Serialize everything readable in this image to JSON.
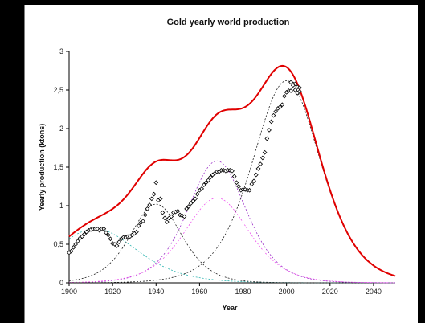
{
  "chart_data": {
    "type": "scatter",
    "title": "Gold yearly world production",
    "xlabel": "Year",
    "ylabel": "Yearly production (ktons)",
    "xlim": [
      1900,
      2050
    ],
    "ylim": [
      0,
      3
    ],
    "x_ticks": [
      "1900",
      "1920",
      "1940",
      "1960",
      "1980",
      "2000",
      "2020",
      "2040"
    ],
    "y_ticks": [
      "0",
      "0,5",
      "1",
      "1,5",
      "2",
      "2,5",
      "3"
    ],
    "grid": false,
    "legend": "none",
    "observed": {
      "marker": "diamond",
      "color": "#000000",
      "x": [
        1900,
        1901,
        1902,
        1903,
        1904,
        1905,
        1906,
        1907,
        1908,
        1909,
        1910,
        1911,
        1912,
        1913,
        1914,
        1915,
        1916,
        1917,
        1918,
        1919,
        1920,
        1921,
        1922,
        1923,
        1924,
        1925,
        1926,
        1927,
        1928,
        1929,
        1930,
        1931,
        1932,
        1933,
        1934,
        1935,
        1936,
        1937,
        1938,
        1939,
        1940,
        1941,
        1942,
        1943,
        1944,
        1945,
        1946,
        1947,
        1948,
        1949,
        1950,
        1951,
        1952,
        1953,
        1954,
        1955,
        1956,
        1957,
        1958,
        1959,
        1960,
        1961,
        1962,
        1963,
        1964,
        1965,
        1966,
        1967,
        1968,
        1969,
        1970,
        1971,
        1972,
        1973,
        1974,
        1975,
        1976,
        1977,
        1978,
        1979,
        1980,
        1981,
        1982,
        1983,
        1984,
        1985,
        1986,
        1987,
        1988,
        1989,
        1990,
        1991,
        1992,
        1993,
        1994,
        1995,
        1996,
        1997,
        1998,
        1999,
        2000,
        2001,
        2002,
        2003,
        2004,
        2005,
        2006
      ],
      "y": [
        0.39,
        0.41,
        0.46,
        0.5,
        0.54,
        0.58,
        0.6,
        0.63,
        0.66,
        0.68,
        0.69,
        0.7,
        0.7,
        0.7,
        0.68,
        0.7,
        0.7,
        0.65,
        0.62,
        0.57,
        0.51,
        0.5,
        0.48,
        0.53,
        0.57,
        0.59,
        0.59,
        0.6,
        0.6,
        0.62,
        0.64,
        0.66,
        0.74,
        0.78,
        0.8,
        0.88,
        0.96,
        1.01,
        1.09,
        1.15,
        1.3,
        1.07,
        1.09,
        0.91,
        0.84,
        0.79,
        0.84,
        0.86,
        0.91,
        0.92,
        0.93,
        0.88,
        0.87,
        0.86,
        0.96,
        0.99,
        1.03,
        1.06,
        1.09,
        1.15,
        1.2,
        1.22,
        1.27,
        1.3,
        1.33,
        1.37,
        1.4,
        1.42,
        1.44,
        1.44,
        1.46,
        1.46,
        1.45,
        1.46,
        1.46,
        1.45,
        1.38,
        1.3,
        1.25,
        1.2,
        1.21,
        1.21,
        1.2,
        1.2,
        1.28,
        1.32,
        1.4,
        1.48,
        1.54,
        1.62,
        1.69,
        1.87,
        1.98,
        2.09,
        2.17,
        2.22,
        2.26,
        2.28,
        2.31,
        2.42,
        2.47,
        2.49,
        2.49,
        2.58,
        2.58,
        2.54,
        2.53
      ],
      "extra_x": [
        2002,
        2003,
        2004,
        2005,
        2006
      ],
      "extra_y": [
        2.6,
        2.56,
        2.5,
        2.46,
        2.48
      ]
    },
    "fit_components": [
      {
        "color": "#2fb5b0",
        "peak_year": 1912,
        "peak": 0.7,
        "width": 13.0
      },
      {
        "color": "#222222",
        "peak_year": 1940,
        "peak": 1.02,
        "width": 8.0
      },
      {
        "color": "#9b30c8",
        "peak_year": 1968,
        "peak": 1.58,
        "width": 9.0
      },
      {
        "color": "#ee55ee",
        "peak_year": 1968,
        "peak": 1.1,
        "width": 10.0
      },
      {
        "color": "#222222",
        "peak_year": 2000,
        "peak": 2.62,
        "width": 10.5
      }
    ],
    "total_fit_color": "#e00000"
  }
}
